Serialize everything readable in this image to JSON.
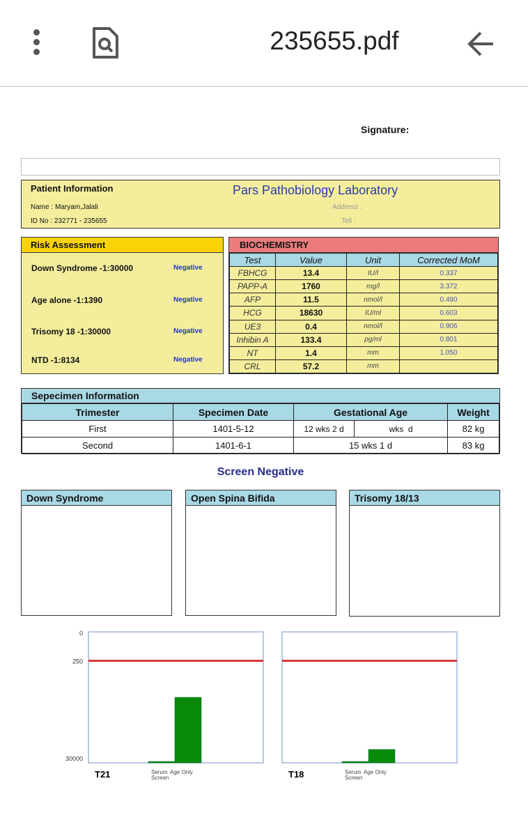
{
  "app_bar": {
    "title": "235655.pdf",
    "icons": [
      "more-vert-icon",
      "search-document-icon",
      "back-arrow-icon"
    ]
  },
  "signature_label": "Signature:",
  "patient": {
    "heading": "Patient Information",
    "lab": "Pars Pathobiology Laboratory",
    "name": "Name : Maryam,Jalali",
    "id": "ID No : 232771 - 235655",
    "address": "Address :",
    "tel": "Tell :"
  },
  "risk": {
    "heading": "Risk Assessment",
    "items": [
      {
        "label": "Down Syndrome -1:30000",
        "status": "Negative"
      },
      {
        "label": "Age alone -1:1390",
        "status": "Negative"
      },
      {
        "label": "Trisomy 18 -1:30000",
        "status": "Negative"
      },
      {
        "label": "NTD -1:8134",
        "status": "Negative"
      }
    ]
  },
  "biochem": {
    "heading": "BIOCHEMISTRY",
    "columns": [
      "Test",
      "Value",
      "Unit",
      "Corrected MoM"
    ],
    "rows": [
      [
        "FBHCG",
        "13.4",
        "IU/l",
        "0.337"
      ],
      [
        "PAPP-A",
        "1760",
        "mg/l",
        "3.372"
      ],
      [
        "AFP",
        "11.5",
        "nmol/l",
        "0.490"
      ],
      [
        "HCG",
        "18630",
        "IU/ml",
        "0.603"
      ],
      [
        "UE3",
        "0.4",
        "nmol/l",
        "0.906"
      ],
      [
        "Inhibin A",
        "133.4",
        "pg/ml",
        "0.801"
      ],
      [
        "NT",
        "1.4",
        "mm",
        "1.050"
      ],
      [
        "CRL",
        "57.2",
        "mm",
        ""
      ]
    ]
  },
  "specimen": {
    "heading": "Sepecimen Information",
    "columns": [
      "Trimester",
      "Specimen Date",
      "Gestational Age",
      "Weight"
    ],
    "rows": [
      {
        "trimester": "First",
        "date": "1401-5-12",
        "ga1": "12 wks 2 d",
        "ga2": "wks  d",
        "weight": "82 kg"
      },
      {
        "trimester": "Second",
        "date": "1401-6-1",
        "ga": "15 wks 1 d",
        "weight": "83 kg"
      }
    ]
  },
  "result": "Screen Negative",
  "panels": [
    "Down Syndrome",
    "Open Spina Bifida",
    "Trisomy 18/13"
  ],
  "chart_data": [
    {
      "type": "bar",
      "title": "T21",
      "categories": [
        "Serum Screen",
        "Age Only"
      ],
      "values": [
        30000,
        1390
      ],
      "cutoff": 250,
      "ytick_labels": [
        "0",
        "250",
        "30000"
      ],
      "y_scale": "log (risk 1:N, inverted)",
      "colors": {
        "bar": "#0a8a0a",
        "cutoff": "#d93a3a"
      }
    },
    {
      "type": "bar",
      "title": "T18",
      "categories": [
        "Serum Screen",
        "Age Only"
      ],
      "values": [
        30000,
        16000
      ],
      "cutoff": 250,
      "colors": {
        "bar": "#0a8a0a",
        "cutoff": "#d93a3a"
      }
    }
  ]
}
